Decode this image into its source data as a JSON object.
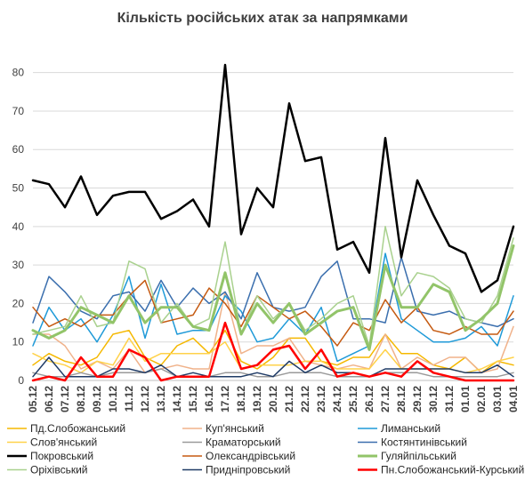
{
  "chart_data": {
    "type": "line",
    "title": "Кількість російських атак за напрямками",
    "xlabel": "",
    "ylabel": "",
    "ylim": [
      0,
      85
    ],
    "yticks": [
      0,
      10,
      20,
      30,
      40,
      50,
      60,
      70,
      80
    ],
    "grid": "horizontal",
    "legend_position": "bottom",
    "x": [
      "05.12",
      "06.12",
      "07.12",
      "08.12",
      "09.12",
      "10.12",
      "11.12",
      "12.12",
      "13.12",
      "14.12",
      "15.12",
      "16.12",
      "17.12",
      "18.12",
      "19.12",
      "20.12",
      "21.12",
      "22.12",
      "23.12",
      "24.12",
      "25.12",
      "26.12",
      "27.12",
      "28.12",
      "29.12",
      "30.12",
      "31.12",
      "01.01",
      "02.01",
      "03.01",
      "04.01"
    ],
    "series": [
      {
        "name": "Пд.Слобожанський",
        "color": "#f5b800",
        "width": 1.5,
        "values": [
          4,
          7,
          5,
          4,
          6,
          12,
          13,
          6,
          4,
          9,
          11,
          7,
          13,
          5,
          3,
          6,
          11,
          11,
          5,
          4,
          6,
          6,
          12,
          7,
          7,
          4,
          3,
          6,
          2,
          5,
          4
        ]
      },
      {
        "name": "Куп'янський",
        "color": "#f0b28a",
        "width": 1.5,
        "values": [
          12,
          12,
          9,
          3,
          5,
          3,
          8,
          2,
          3,
          4,
          3,
          3,
          23,
          7,
          9,
          9,
          11,
          5,
          4,
          3,
          4,
          3,
          12,
          3,
          6,
          4,
          6,
          6,
          2,
          3,
          14
        ]
      },
      {
        "name": "Лиманський",
        "color": "#1f9ad8",
        "width": 1.5,
        "values": [
          9,
          19,
          13,
          16,
          10,
          17,
          27,
          11,
          25,
          12,
          13,
          13,
          22,
          18,
          10,
          11,
          16,
          12,
          19,
          5,
          7,
          9,
          33,
          16,
          13,
          10,
          10,
          11,
          14,
          9,
          22
        ]
      },
      {
        "name": "Слов'янський",
        "color": "#ffd24a",
        "width": 1.5,
        "values": [
          7,
          5,
          4,
          2,
          5,
          4,
          11,
          5,
          7,
          7,
          7,
          7,
          10,
          3,
          4,
          4,
          4,
          5,
          5,
          3,
          3,
          3,
          8,
          3,
          3,
          3,
          3,
          2,
          3,
          5,
          6
        ]
      },
      {
        "name": "Краматорський",
        "color": "#9a9a9a",
        "width": 1.5,
        "values": [
          2,
          1,
          1,
          2,
          1,
          2,
          2,
          2,
          3,
          1,
          1,
          1,
          2,
          2,
          1,
          1,
          2,
          2,
          2,
          1,
          1,
          1,
          2,
          2,
          2,
          1,
          1,
          1,
          1,
          1,
          2
        ]
      },
      {
        "name": "Костянтинівський",
        "color": "#3b6fae",
        "width": 1.5,
        "values": [
          15,
          27,
          23,
          18,
          16,
          22,
          23,
          18,
          26,
          19,
          24,
          20,
          23,
          16,
          28,
          19,
          18,
          19,
          27,
          31,
          16,
          16,
          15,
          32,
          18,
          17,
          18,
          16,
          15,
          14,
          16
        ]
      },
      {
        "name": "Покровський",
        "color": "#000000",
        "width": 2.5,
        "values": [
          52,
          51,
          45,
          53,
          43,
          48,
          49,
          49,
          42,
          44,
          47,
          40,
          82,
          38,
          50,
          45,
          72,
          57,
          58,
          34,
          36,
          28,
          63,
          32,
          52,
          43,
          35,
          33,
          23,
          26,
          40
        ]
      },
      {
        "name": "Олександрівський",
        "color": "#c55a11",
        "width": 1.5,
        "values": [
          19,
          14,
          16,
          14,
          17,
          17,
          22,
          26,
          15,
          16,
          17,
          24,
          20,
          14,
          22,
          19,
          16,
          18,
          14,
          9,
          15,
          13,
          21,
          15,
          19,
          13,
          12,
          14,
          12,
          12,
          18
        ]
      },
      {
        "name": "Гуляйпільський",
        "color": "#92c469",
        "width": 3,
        "values": [
          13,
          11,
          13,
          19,
          17,
          15,
          22,
          15,
          19,
          19,
          14,
          13,
          28,
          12,
          20,
          15,
          20,
          12,
          15,
          18,
          19,
          8,
          30,
          19,
          19,
          25,
          23,
          13,
          16,
          20,
          35
        ]
      },
      {
        "name": "Оріхівський",
        "color": "#a9d18e",
        "width": 1.5,
        "values": [
          12,
          13,
          14,
          22,
          14,
          15,
          31,
          29,
          15,
          20,
          14,
          16,
          36,
          12,
          22,
          16,
          20,
          13,
          16,
          20,
          22,
          9,
          40,
          22,
          28,
          27,
          24,
          16,
          15,
          22,
          37
        ]
      },
      {
        "name": "Придніпровський",
        "color": "#1f3b66",
        "width": 1.5,
        "values": [
          1,
          6,
          1,
          1,
          1,
          3,
          3,
          2,
          4,
          1,
          2,
          1,
          1,
          1,
          2,
          1,
          5,
          2,
          4,
          2,
          2,
          1,
          3,
          3,
          3,
          3,
          3,
          2,
          2,
          4,
          1
        ]
      },
      {
        "name": "Пн.Слобожанський-Курський",
        "color": "#ff0000",
        "width": 2.5,
        "values": [
          0,
          1,
          0,
          6,
          1,
          1,
          8,
          6,
          0,
          1,
          1,
          1,
          15,
          3,
          4,
          8,
          9,
          3,
          8,
          1,
          2,
          1,
          2,
          1,
          5,
          2,
          1,
          0,
          0,
          0,
          0
        ]
      }
    ]
  }
}
